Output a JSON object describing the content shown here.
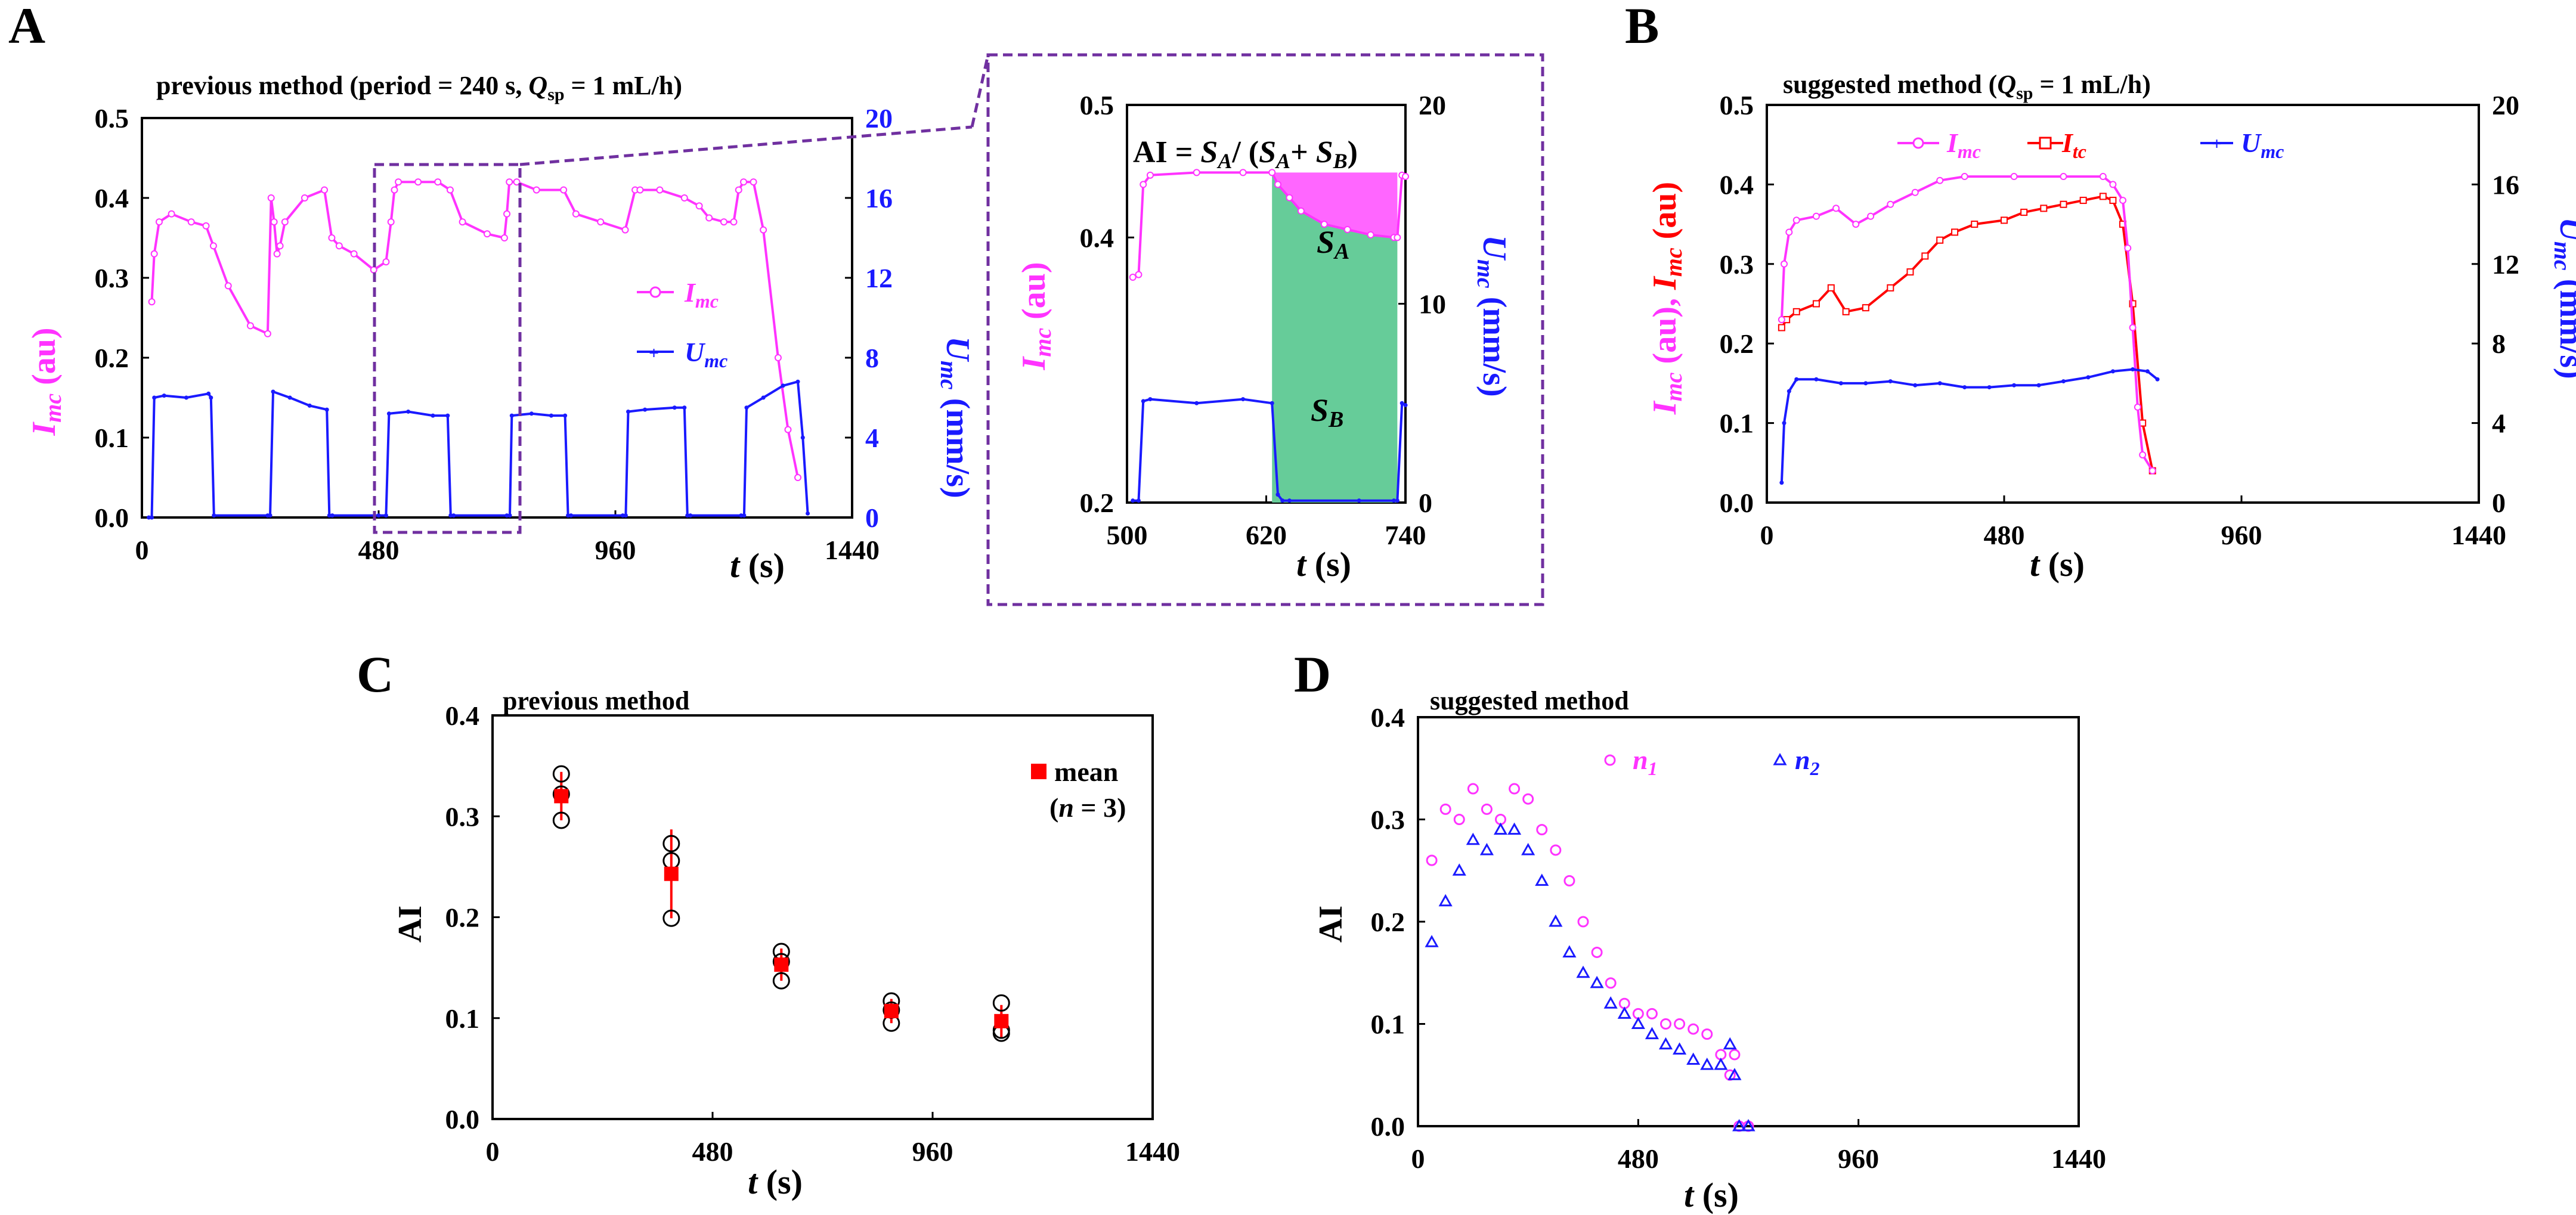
{
  "panels": {
    "A": {
      "letter": "A"
    },
    "B": {
      "letter": "B"
    },
    "C": {
      "letter": "C"
    },
    "D": {
      "letter": "D"
    }
  },
  "colors": {
    "magenta": "#ff33ff",
    "blue": "#1a1aff",
    "red": "#ff0000",
    "green": "#66cc99",
    "pink": "#ff66ff",
    "purple": "#7030a0"
  },
  "chart_data": [
    {
      "id": "A",
      "type": "line",
      "title_parts": [
        "previous method (period = 240 s, ",
        "Q",
        "sp",
        " = 1 mL/h)"
      ],
      "xlabel": "t (s)",
      "ylabel_left": "Imc (au)",
      "ylabel_right": "Umc (mm/s)",
      "xlim": [
        0,
        1440
      ],
      "ylim_left": [
        0,
        0.5
      ],
      "ylim_right": [
        0,
        20
      ],
      "xticks": [
        0,
        480,
        960,
        1440
      ],
      "yticks_left": [
        "0.0",
        "0.1",
        "0.2",
        "0.3",
        "0.4",
        "0.5"
      ],
      "yticks_right": [
        "0",
        "4",
        "8",
        "12",
        "16",
        "20"
      ],
      "legend": [
        "Imc",
        "Umc"
      ],
      "legend_position": "right-middle",
      "highlight_window_x": [
        480,
        760
      ],
      "series": [
        {
          "name": "Imc",
          "axis": "left",
          "color": "#ff33ff",
          "x": [
            20,
            25,
            35,
            60,
            100,
            130,
            145,
            175,
            220,
            255,
            262,
            268,
            274,
            280,
            290,
            330,
            370,
            385,
            400,
            430,
            470,
            495,
            505,
            512,
            520,
            560,
            600,
            625,
            650,
            700,
            735,
            740,
            745,
            760,
            800,
            855,
            880,
            930,
            980,
            1000,
            1010,
            1050,
            1100,
            1130,
            1150,
            1180,
            1200,
            1210,
            1220,
            1240,
            1260,
            1290,
            1310,
            1330
          ],
          "y": [
            0.27,
            0.33,
            0.37,
            0.38,
            0.37,
            0.365,
            0.34,
            0.29,
            0.24,
            0.23,
            0.4,
            0.37,
            0.33,
            0.34,
            0.37,
            0.4,
            0.41,
            0.35,
            0.34,
            0.33,
            0.31,
            0.32,
            0.37,
            0.41,
            0.42,
            0.42,
            0.42,
            0.41,
            0.37,
            0.355,
            0.35,
            0.38,
            0.42,
            0.42,
            0.41,
            0.41,
            0.38,
            0.37,
            0.36,
            0.41,
            0.41,
            0.41,
            0.4,
            0.39,
            0.375,
            0.37,
            0.37,
            0.41,
            0.42,
            0.42,
            0.36,
            0.2,
            0.11,
            0.05
          ]
        },
        {
          "name": "Umc",
          "axis": "right",
          "color": "#1a1aff",
          "x": [
            14,
            20,
            25,
            45,
            90,
            135,
            140,
            146,
            255,
            260,
            266,
            300,
            340,
            375,
            380,
            386,
            480,
            495,
            501,
            540,
            590,
            620,
            626,
            632,
            740,
            746,
            750,
            790,
            830,
            858,
            864,
            870,
            975,
            981,
            986,
            1020,
            1080,
            1100,
            1106,
            1112,
            1215,
            1221,
            1226,
            1260,
            1300,
            1330,
            1340,
            1350
          ],
          "y": [
            0,
            0,
            6.0,
            6.1,
            6.0,
            6.2,
            6.0,
            0.1,
            0.1,
            0.1,
            6.3,
            6.0,
            5.6,
            5.4,
            0.1,
            0.1,
            0.1,
            0.1,
            5.2,
            5.3,
            5.1,
            5.1,
            0.1,
            0.1,
            0.1,
            0.1,
            5.1,
            5.2,
            5.1,
            5.1,
            0.1,
            0.1,
            0.1,
            0.1,
            5.3,
            5.4,
            5.5,
            5.5,
            0.1,
            0.1,
            0.1,
            0.1,
            5.5,
            6.0,
            6.6,
            6.8,
            4.0,
            0.2
          ]
        }
      ]
    },
    {
      "id": "A-inset",
      "type": "line",
      "formula": "AI = SA/ (SA+ SB)",
      "xlabel": "t (s)",
      "ylabel_left": "Imc (au)",
      "ylabel_right": "Umc (mm/s)",
      "xlim": [
        500,
        740
      ],
      "ylim_left": [
        0.2,
        0.5
      ],
      "ylim_right": [
        0,
        20
      ],
      "xticks": [
        500,
        620,
        740
      ],
      "yticks_left": [
        "0.2",
        "0.4",
        "0.5"
      ],
      "yticks_right": [
        "0",
        "10",
        "20"
      ],
      "area_labels": [
        "SA",
        "SB"
      ],
      "series": [
        {
          "name": "Imc",
          "axis": "left",
          "color": "#ff33ff",
          "x": [
            505,
            510,
            514,
            520,
            560,
            600,
            625,
            630,
            640,
            650,
            670,
            690,
            710,
            730,
            733,
            737,
            740
          ],
          "y": [
            0.37,
            0.372,
            0.44,
            0.447,
            0.449,
            0.449,
            0.449,
            0.44,
            0.43,
            0.42,
            0.41,
            0.406,
            0.402,
            0.4,
            0.4,
            0.447,
            0.446
          ]
        },
        {
          "name": "Umc",
          "axis": "right",
          "color": "#1a1aff",
          "x": [
            505,
            510,
            514,
            520,
            560,
            600,
            625,
            630,
            634,
            640,
            700,
            730,
            733,
            737,
            740
          ],
          "y": [
            0.1,
            0.1,
            5.1,
            5.2,
            5.0,
            5.2,
            5.0,
            0.4,
            0.1,
            0.1,
            0.1,
            0.1,
            0.1,
            5.0,
            4.9
          ]
        }
      ]
    },
    {
      "id": "B",
      "type": "line",
      "title_parts": [
        "suggested method (",
        "Q",
        "sp",
        " = 1 mL/h)"
      ],
      "xlabel": "t (s)",
      "ylabel_left": "Imc (au), Imc (au)",
      "ylabel_right": "Umc (mm/s)",
      "xlim": [
        0,
        1440
      ],
      "ylim_left": [
        0,
        0.5
      ],
      "ylim_right": [
        0,
        20
      ],
      "xticks": [
        0,
        480,
        960,
        1440
      ],
      "yticks_left": [
        "0.0",
        "0.1",
        "0.2",
        "0.3",
        "0.4",
        "0.5"
      ],
      "yticks_right": [
        "0",
        "4",
        "8",
        "12",
        "16",
        "20"
      ],
      "legend": [
        "Imc",
        "Itc",
        "Umc"
      ],
      "legend_position": "top",
      "series": [
        {
          "name": "Imc",
          "axis": "left",
          "color": "#ff33ff",
          "x": [
            30,
            35,
            45,
            60,
            100,
            140,
            180,
            210,
            250,
            300,
            350,
            400,
            500,
            600,
            680,
            700,
            720,
            730,
            740,
            750,
            760,
            780
          ],
          "y": [
            0.23,
            0.3,
            0.34,
            0.355,
            0.36,
            0.37,
            0.35,
            0.36,
            0.375,
            0.39,
            0.405,
            0.41,
            0.41,
            0.41,
            0.41,
            0.4,
            0.38,
            0.32,
            0.22,
            0.12,
            0.06,
            0.04
          ]
        },
        {
          "name": "Itc",
          "axis": "left",
          "color": "#ff0000",
          "x": [
            30,
            40,
            60,
            100,
            130,
            160,
            200,
            250,
            290,
            320,
            350,
            380,
            420,
            480,
            520,
            560,
            600,
            640,
            680,
            700,
            720,
            740,
            760,
            780
          ],
          "y": [
            0.22,
            0.23,
            0.24,
            0.25,
            0.27,
            0.24,
            0.245,
            0.27,
            0.29,
            0.31,
            0.33,
            0.34,
            0.35,
            0.355,
            0.365,
            0.37,
            0.375,
            0.38,
            0.385,
            0.38,
            0.35,
            0.25,
            0.1,
            0.04
          ]
        },
        {
          "name": "Umc",
          "axis": "right",
          "color": "#1a1aff",
          "x": [
            30,
            35,
            45,
            60,
            100,
            150,
            200,
            250,
            300,
            350,
            400,
            450,
            500,
            550,
            600,
            650,
            700,
            740,
            770,
            790
          ],
          "y": [
            1.0,
            4.0,
            5.6,
            6.2,
            6.2,
            6.0,
            6.0,
            6.1,
            5.9,
            6.0,
            5.8,
            5.8,
            5.9,
            5.9,
            6.1,
            6.3,
            6.6,
            6.7,
            6.6,
            6.2
          ]
        }
      ]
    },
    {
      "id": "C",
      "type": "scatter",
      "title": "previous method",
      "xlabel": "t (s)",
      "ylabel": "AI",
      "xlim": [
        0,
        1440
      ],
      "ylim": [
        0,
        0.4
      ],
      "xticks": [
        0,
        480,
        960,
        1440
      ],
      "yticks": [
        "0.0",
        "0.1",
        "0.2",
        "0.3",
        "0.4"
      ],
      "legend": [
        "mean",
        "(n = 3)"
      ],
      "legend_position": "top-right",
      "series": [
        {
          "name": "mean",
          "color": "#ff0000",
          "x": [
            150,
            390,
            630,
            870,
            1110
          ],
          "y": [
            0.32,
            0.243,
            0.153,
            0.107,
            0.097
          ],
          "error": [
            0.024,
            0.044,
            0.016,
            0.012,
            0.016
          ]
        },
        {
          "name": "replicates",
          "color": "#000000",
          "x": [
            150,
            150,
            150,
            390,
            390,
            390,
            630,
            630,
            630,
            870,
            870,
            870,
            1110,
            1110,
            1110
          ],
          "y": [
            0.342,
            0.322,
            0.296,
            0.273,
            0.256,
            0.199,
            0.166,
            0.156,
            0.137,
            0.117,
            0.108,
            0.095,
            0.115,
            0.088,
            0.085
          ]
        }
      ]
    },
    {
      "id": "D",
      "type": "scatter",
      "title": "suggested method",
      "xlabel": "t (s)",
      "ylabel": "AI",
      "xlim": [
        0,
        1440
      ],
      "ylim": [
        0,
        0.4
      ],
      "xticks": [
        0,
        480,
        960,
        1440
      ],
      "yticks": [
        "0.0",
        "0.1",
        "0.2",
        "0.3",
        "0.4"
      ],
      "legend": [
        "n1",
        "n2"
      ],
      "legend_position": "top",
      "series": [
        {
          "name": "n1",
          "color": "#ff33ff",
          "marker": "circle",
          "x": [
            30,
            60,
            90,
            120,
            150,
            180,
            210,
            240,
            270,
            300,
            330,
            360,
            390,
            420,
            450,
            480,
            510,
            540,
            570,
            600,
            630,
            660,
            680,
            690,
            700,
            720
          ],
          "y": [
            0.26,
            0.31,
            0.3,
            0.33,
            0.31,
            0.3,
            0.33,
            0.32,
            0.29,
            0.27,
            0.24,
            0.2,
            0.17,
            0.14,
            0.12,
            0.11,
            0.11,
            0.1,
            0.1,
            0.095,
            0.09,
            0.07,
            0.05,
            0.07,
            0.0,
            0.0
          ]
        },
        {
          "name": "n2",
          "color": "#1a1aff",
          "marker": "triangle",
          "x": [
            30,
            60,
            90,
            120,
            150,
            180,
            210,
            240,
            270,
            300,
            330,
            360,
            390,
            420,
            450,
            480,
            510,
            540,
            570,
            600,
            630,
            660,
            680,
            690,
            700,
            720
          ],
          "y": [
            0.18,
            0.22,
            0.25,
            0.28,
            0.27,
            0.29,
            0.29,
            0.27,
            0.24,
            0.2,
            0.17,
            0.15,
            0.14,
            0.12,
            0.11,
            0.1,
            0.09,
            0.08,
            0.075,
            0.065,
            0.06,
            0.06,
            0.08,
            0.05,
            0.0,
            0.0
          ]
        }
      ]
    }
  ]
}
